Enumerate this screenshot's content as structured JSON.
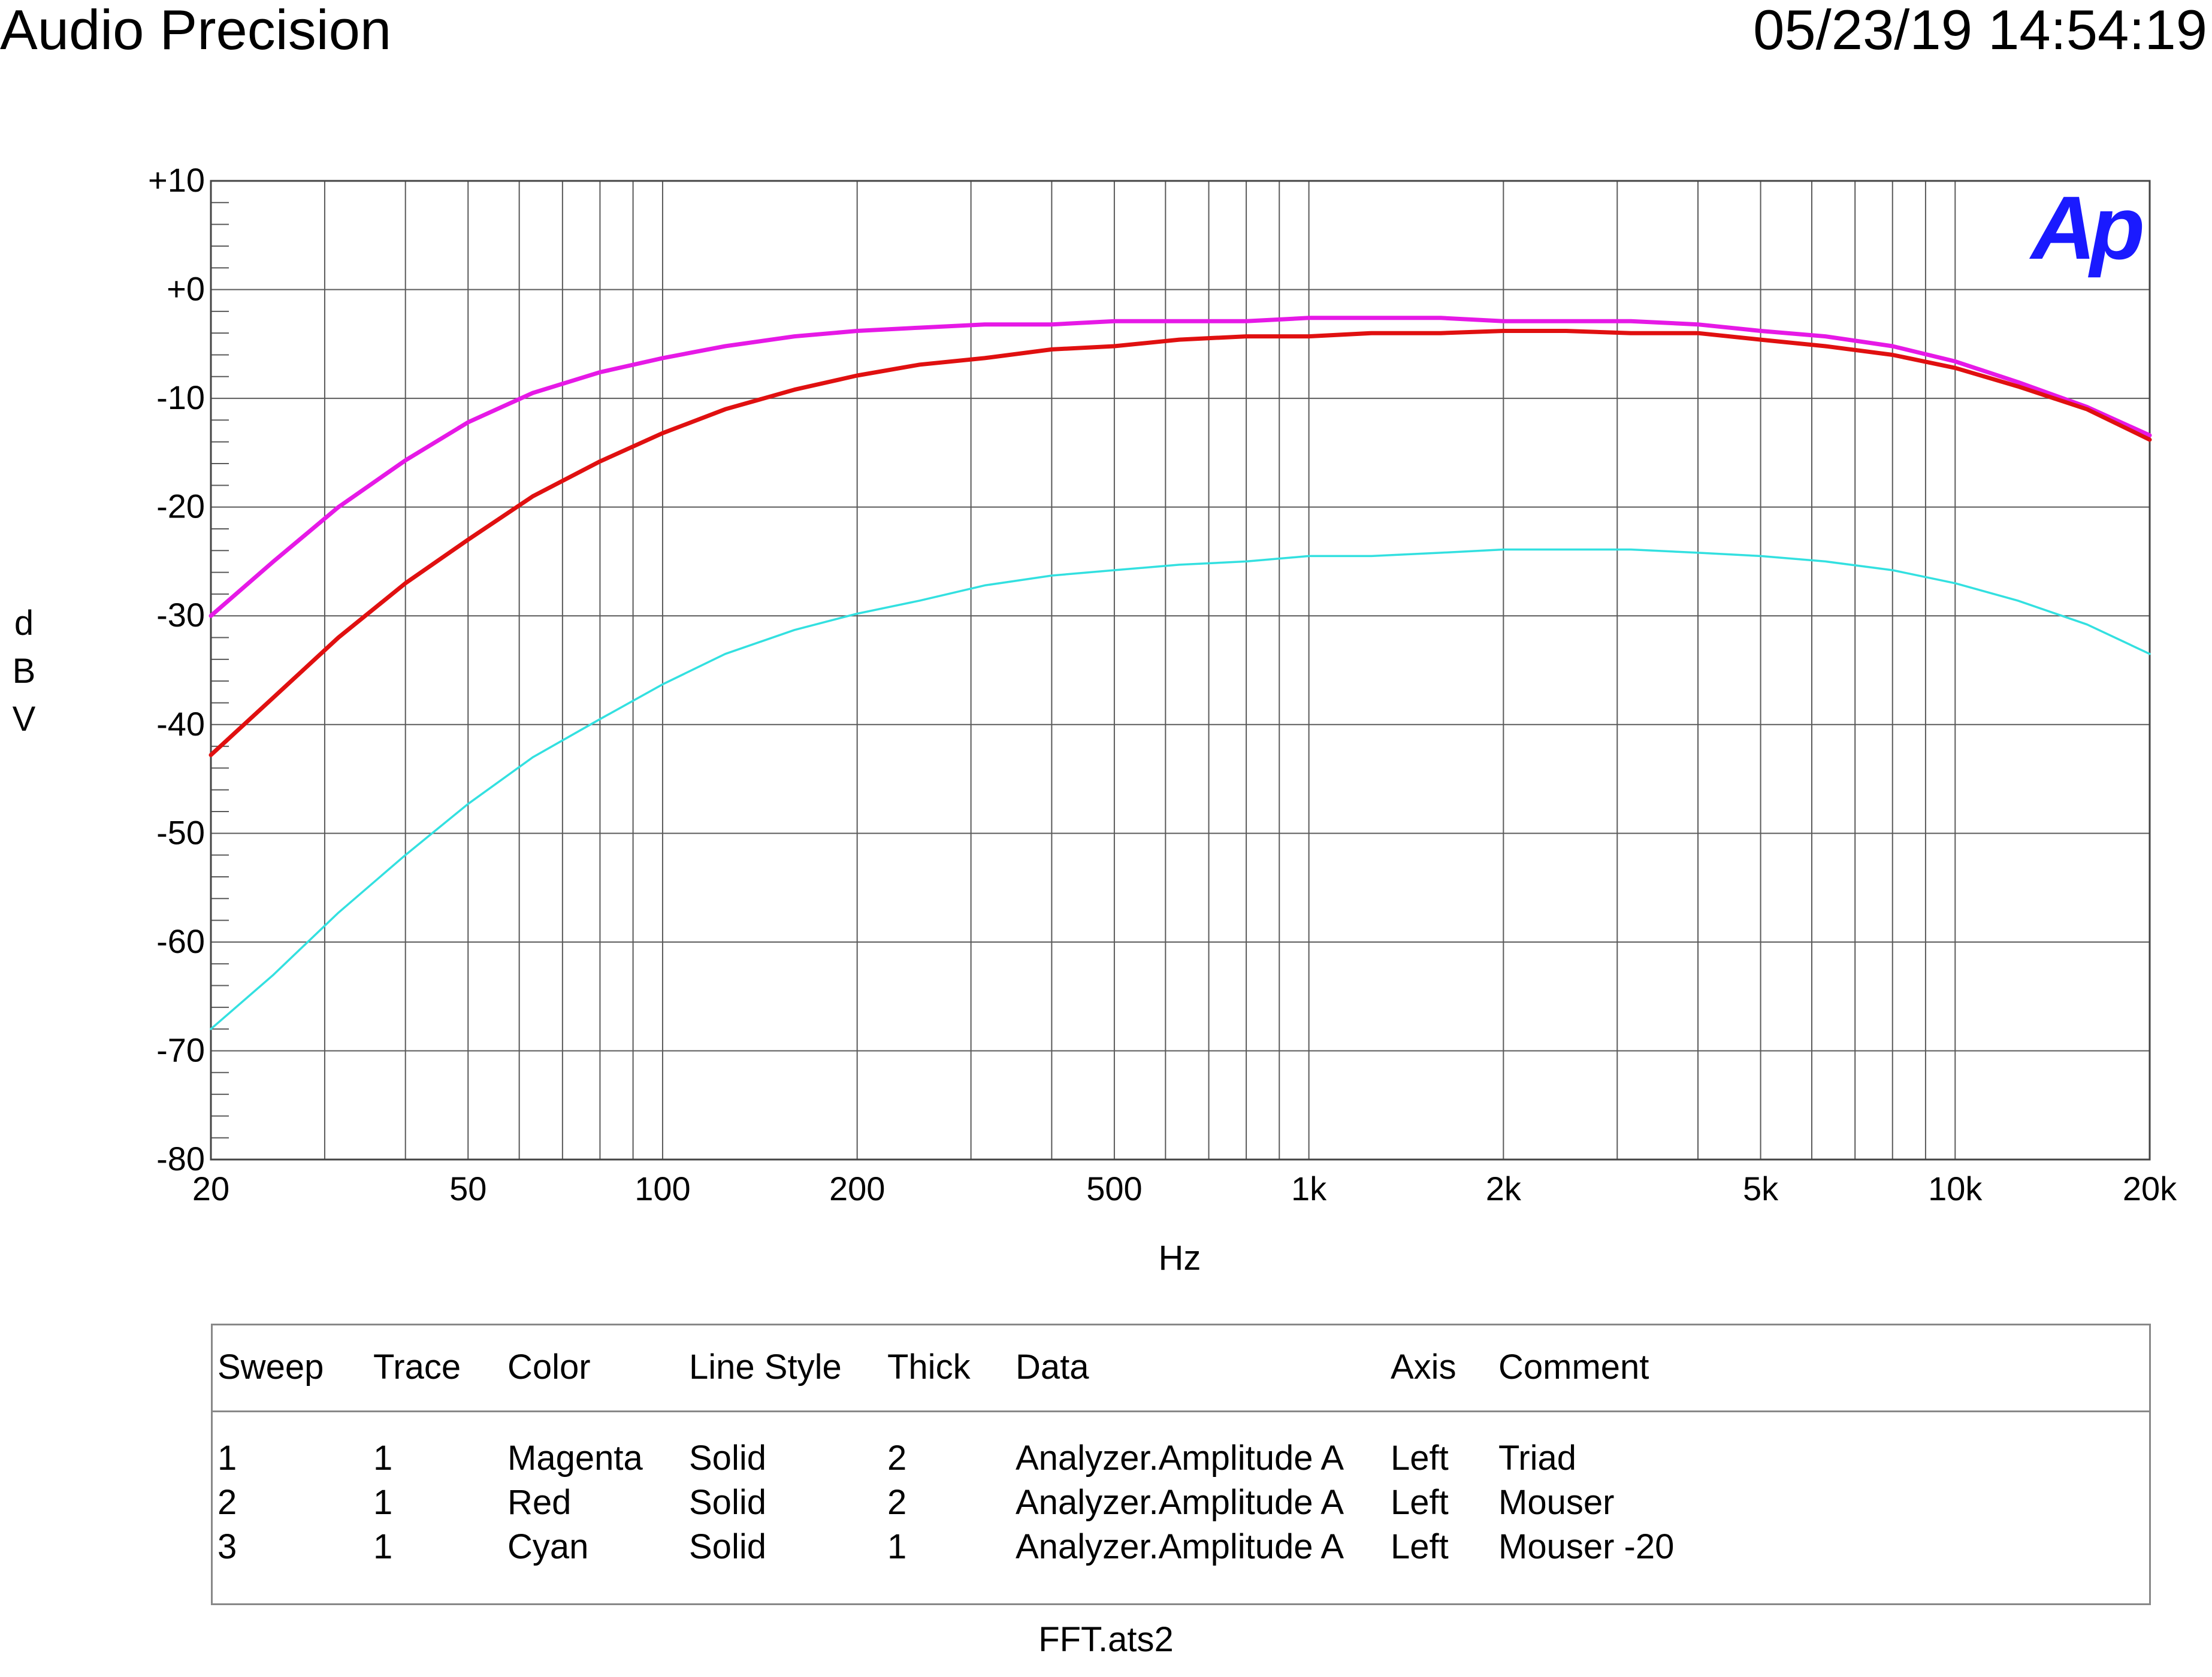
{
  "header": {
    "brand": "Audio Precision",
    "timestamp": "05/23/19 14:54:19"
  },
  "logo_text": "Ap",
  "chart_data": {
    "type": "line",
    "title": "",
    "xlabel": "Hz",
    "ylabel": "dBV",
    "xscale": "log",
    "xlim": [
      20,
      20000
    ],
    "ylim": [
      -80,
      10
    ],
    "grid": true,
    "x_ticks": [
      {
        "value": 20,
        "label": "20"
      },
      {
        "value": 50,
        "label": "50"
      },
      {
        "value": 100,
        "label": "100"
      },
      {
        "value": 200,
        "label": "200"
      },
      {
        "value": 500,
        "label": "500"
      },
      {
        "value": 1000,
        "label": "1k"
      },
      {
        "value": 2000,
        "label": "2k"
      },
      {
        "value": 5000,
        "label": "5k"
      },
      {
        "value": 10000,
        "label": "10k"
      },
      {
        "value": 20000,
        "label": "20k"
      }
    ],
    "y_ticks": [
      {
        "value": 10,
        "label": "+10"
      },
      {
        "value": 0,
        "label": "+0"
      },
      {
        "value": -10,
        "label": "-10"
      },
      {
        "value": -20,
        "label": "-20"
      },
      {
        "value": -30,
        "label": "-30"
      },
      {
        "value": -40,
        "label": "-40"
      },
      {
        "value": -50,
        "label": "-50"
      },
      {
        "value": -60,
        "label": "-60"
      },
      {
        "value": -70,
        "label": "-70"
      },
      {
        "value": -80,
        "label": "-80"
      }
    ],
    "series": [
      {
        "color": "#e619e6",
        "values": [
          [
            20,
            -30
          ],
          [
            25,
            -25
          ],
          [
            31.5,
            -20
          ],
          [
            40,
            -15.7
          ],
          [
            50,
            -12.2
          ],
          [
            63,
            -9.5
          ],
          [
            80,
            -7.6
          ],
          [
            100,
            -6.3
          ],
          [
            125,
            -5.2
          ],
          [
            160,
            -4.3
          ],
          [
            200,
            -3.8
          ],
          [
            250,
            -3.5
          ],
          [
            315,
            -3.2
          ],
          [
            400,
            -3.2
          ],
          [
            500,
            -2.9
          ],
          [
            630,
            -2.9
          ],
          [
            800,
            -2.9
          ],
          [
            1000,
            -2.6
          ],
          [
            1250,
            -2.6
          ],
          [
            1600,
            -2.6
          ],
          [
            2000,
            -2.9
          ],
          [
            2500,
            -2.9
          ],
          [
            3150,
            -2.9
          ],
          [
            4000,
            -3.2
          ],
          [
            5000,
            -3.8
          ],
          [
            6300,
            -4.3
          ],
          [
            8000,
            -5.2
          ],
          [
            10000,
            -6.6
          ],
          [
            12500,
            -8.5
          ],
          [
            16000,
            -10.8
          ],
          [
            20000,
            -13.4
          ]
        ]
      },
      {
        "color": "#e01010",
        "values": [
          [
            20,
            -42.8
          ],
          [
            25,
            -37.5
          ],
          [
            31.5,
            -32
          ],
          [
            40,
            -27
          ],
          [
            50,
            -23
          ],
          [
            63,
            -19
          ],
          [
            80,
            -15.8
          ],
          [
            100,
            -13.2
          ],
          [
            125,
            -11
          ],
          [
            160,
            -9.2
          ],
          [
            200,
            -7.9
          ],
          [
            250,
            -6.9
          ],
          [
            315,
            -6.3
          ],
          [
            400,
            -5.5
          ],
          [
            500,
            -5.2
          ],
          [
            630,
            -4.6
          ],
          [
            800,
            -4.3
          ],
          [
            1000,
            -4.3
          ],
          [
            1250,
            -4
          ],
          [
            1600,
            -4
          ],
          [
            2000,
            -3.8
          ],
          [
            2500,
            -3.8
          ],
          [
            3150,
            -4
          ],
          [
            4000,
            -4
          ],
          [
            5000,
            -4.6
          ],
          [
            6300,
            -5.2
          ],
          [
            8000,
            -6
          ],
          [
            10000,
            -7.2
          ],
          [
            12500,
            -8.9
          ],
          [
            16000,
            -11
          ],
          [
            20000,
            -13.8
          ]
        ]
      },
      {
        "color": "#33e0e0",
        "values": [
          [
            20,
            -68
          ],
          [
            25,
            -63
          ],
          [
            31.5,
            -57.3
          ],
          [
            40,
            -52
          ],
          [
            50,
            -47.3
          ],
          [
            63,
            -43
          ],
          [
            80,
            -39.5
          ],
          [
            100,
            -36.3
          ],
          [
            125,
            -33.5
          ],
          [
            160,
            -31.3
          ],
          [
            200,
            -29.8
          ],
          [
            250,
            -28.6
          ],
          [
            315,
            -27.2
          ],
          [
            400,
            -26.3
          ],
          [
            500,
            -25.8
          ],
          [
            630,
            -25.3
          ],
          [
            800,
            -25
          ],
          [
            1000,
            -24.5
          ],
          [
            1250,
            -24.5
          ],
          [
            1600,
            -24.2
          ],
          [
            2000,
            -23.9
          ],
          [
            2500,
            -23.9
          ],
          [
            3150,
            -23.9
          ],
          [
            4000,
            -24.2
          ],
          [
            5000,
            -24.5
          ],
          [
            6300,
            -25
          ],
          [
            8000,
            -25.8
          ],
          [
            10000,
            -27
          ],
          [
            12500,
            -28.6
          ],
          [
            16000,
            -30.8
          ],
          [
            20000,
            -33.5
          ]
        ]
      }
    ]
  },
  "legend": {
    "columns": [
      "Sweep",
      "Trace",
      "Color",
      "Line Style",
      "Thick",
      "Data",
      "Axis",
      "Comment"
    ],
    "rows": [
      [
        "1",
        "1",
        "Magenta",
        "Solid",
        "2",
        "Analyzer.Amplitude A",
        "Left",
        "Triad"
      ],
      [
        "2",
        "1",
        "Red",
        "Solid",
        "2",
        "Analyzer.Amplitude A",
        "Left",
        "Mouser"
      ],
      [
        "3",
        "1",
        "Cyan",
        "Solid",
        "1",
        "Analyzer.Amplitude A",
        "Left",
        "Mouser -20"
      ]
    ]
  },
  "footer": {
    "filename": "FFT.ats2"
  }
}
